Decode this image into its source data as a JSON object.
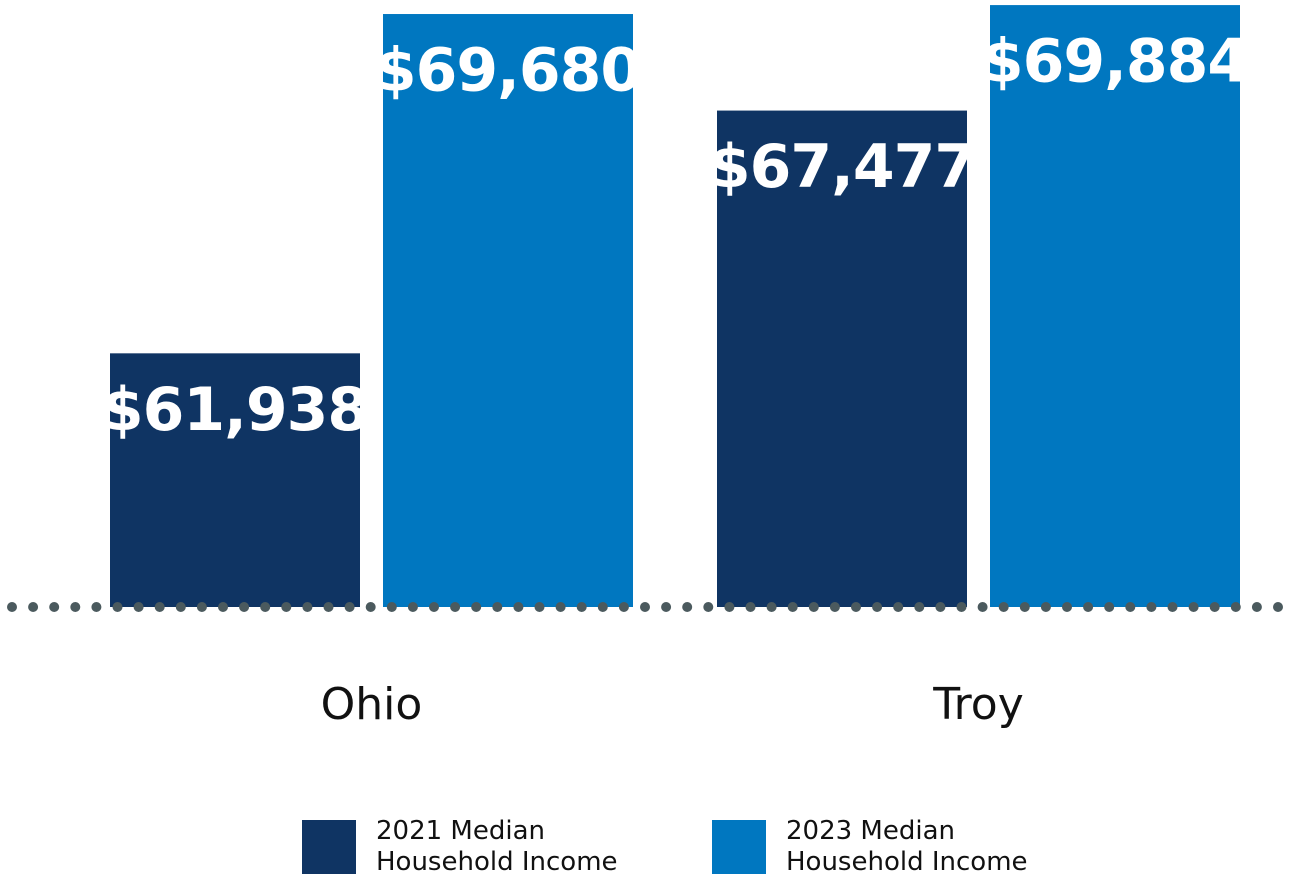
{
  "chart_data": {
    "type": "bar",
    "categories": [
      "Ohio",
      "Troy"
    ],
    "series": [
      {
        "name": "2021 Median Household Income",
        "color": "#0f3463",
        "values": [
          61938,
          67477
        ],
        "value_labels": [
          "$61,938",
          "$67,477"
        ]
      },
      {
        "name": "2023 Median Household Income",
        "color": "#0077c0",
        "values": [
          69680,
          69884
        ],
        "value_labels": [
          "$69,680",
          "$69,884"
        ]
      }
    ],
    "ylim": [
      56150,
      70000
    ]
  }
}
